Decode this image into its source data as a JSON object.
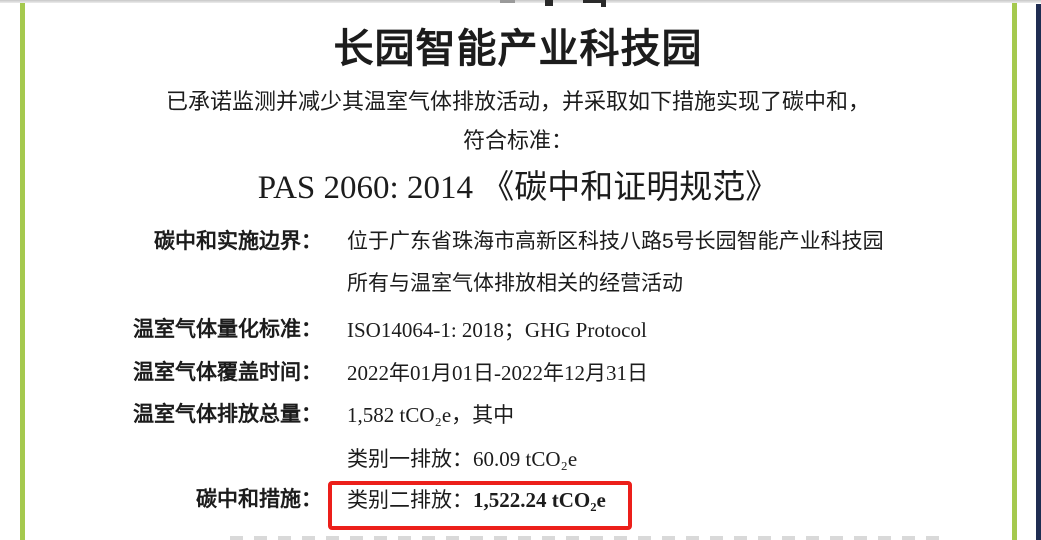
{
  "certificate": {
    "title": "长园智能产业科技园",
    "commitment_line": "已承诺监测并减少其温室气体排放活动，并采取如下措施实现了碳中和，",
    "standard_lead": "符合标准：",
    "standard_name": "PAS 2060: 2014 《碳中和证明规范》",
    "fields": {
      "boundary": {
        "label": "碳中和实施边界：",
        "line1": "位于广东省珠海市高新区科技八路5号长园智能产业科技园",
        "line2": "所有与温室气体排放相关的经营活动"
      },
      "quantification_standard": {
        "label": "温室气体量化标准：",
        "value": "ISO14064-1: 2018；GHG Protocol"
      },
      "coverage_period": {
        "label": "温室气体覆盖时间：",
        "value": "2022年01月01日-2022年12月31日"
      },
      "total_emissions": {
        "label": "温室气体排放总量：",
        "amount": "1,582 tCO₂e",
        "suffix": "，其中"
      },
      "scope1_emissions": {
        "prefix": "类别一排放：",
        "amount": "60.09 tCO₂e"
      },
      "neutralization_measures": {
        "label": "碳中和措施：",
        "prefix": "类别二排放：",
        "amount": "1,522.24 tCO₂e"
      }
    }
  },
  "colors": {
    "accent_green": "#a5c94e",
    "accent_navy": "#1f2d52",
    "highlight_red": "#ec1f1a",
    "top_hairline_gray": "#c7c7c7"
  }
}
